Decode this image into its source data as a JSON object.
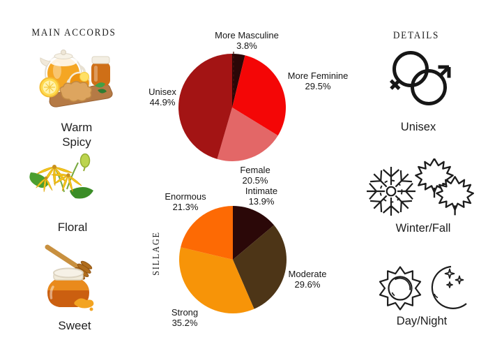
{
  "accords_panel": {
    "title": "MAIN ACCORDS",
    "items": [
      {
        "name": "warm-spicy",
        "label_lines": [
          "Warm",
          "Spicy"
        ],
        "image": "tea-honey-lemon-ginger-photo"
      },
      {
        "name": "floral",
        "label_lines": [
          "Floral"
        ],
        "image": "ylang-ylang-flowers-photo"
      },
      {
        "name": "sweet",
        "label_lines": [
          "Sweet"
        ],
        "image": "honey-jar-dipper-photo"
      }
    ]
  },
  "details_panel": {
    "title": "DETAILS",
    "items": [
      {
        "name": "gender",
        "icon": "unisex-gender-icon",
        "label": "Unisex"
      },
      {
        "name": "season",
        "icon": "snowflake-maple-leaves-icon",
        "label": "Winter/Fall"
      },
      {
        "name": "time",
        "icon": "sun-moon-icon",
        "label": "Day/Night"
      }
    ]
  },
  "chart_data": [
    {
      "type": "pie",
      "name": "gender-votes-pie",
      "labels": [
        "More Masculine",
        "More Feminine",
        "Female",
        "Unisex"
      ],
      "values": [
        3.8,
        29.5,
        20.5,
        44.9
      ],
      "value_labels": [
        "3.8%",
        "29.5%",
        "20.5%",
        "44.9%"
      ],
      "colors": [
        "#2b0707",
        "#f40606",
        "#e36767",
        "#a31414"
      ],
      "start_angle_deg": 0,
      "direction": "clockwise",
      "legend": "labels-around-slices"
    },
    {
      "type": "pie",
      "name": "sillage-pie",
      "side_label": "SILLAGE",
      "labels": [
        "Intimate",
        "Moderate",
        "Strong",
        "Enormous"
      ],
      "values": [
        13.9,
        29.6,
        35.2,
        21.3
      ],
      "value_labels": [
        "13.9%",
        "29.6%",
        "35.2%",
        "21.3%"
      ],
      "colors": [
        "#2b0808",
        "#4d3517",
        "#f79408",
        "#fd6a04"
      ],
      "start_angle_deg": 0,
      "direction": "clockwise",
      "legend": "labels-around-slices"
    }
  ]
}
